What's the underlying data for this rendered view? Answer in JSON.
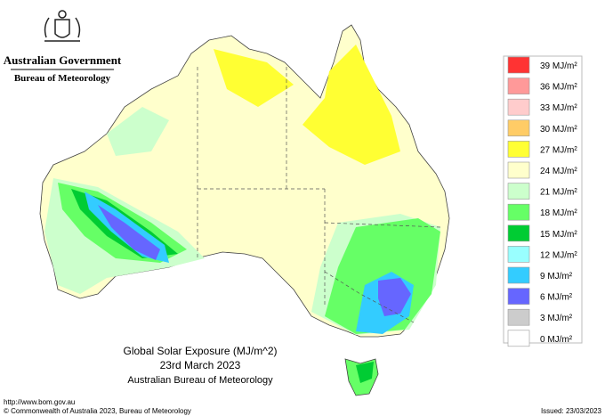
{
  "header": {
    "government": "Australian Government",
    "agency": "Bureau of Meteorology"
  },
  "map": {
    "title": "Global Solar Exposure (MJ/m^2)",
    "date": "23rd March 2023",
    "source": "Australian Bureau of Meteorology"
  },
  "legend": [
    {
      "label": "39 MJ/m²",
      "color": "#ff3333"
    },
    {
      "label": "36 MJ/m²",
      "color": "#ff9999"
    },
    {
      "label": "33 MJ/m²",
      "color": "#ffcccc"
    },
    {
      "label": "30 MJ/m²",
      "color": "#ffcc66"
    },
    {
      "label": "27 MJ/m²",
      "color": "#ffff33"
    },
    {
      "label": "24 MJ/m²",
      "color": "#ffffcc"
    },
    {
      "label": "21 MJ/m²",
      "color": "#ccffcc"
    },
    {
      "label": "18 MJ/m²",
      "color": "#66ff66"
    },
    {
      "label": "15 MJ/m²",
      "color": "#00cc33"
    },
    {
      "label": "12 MJ/m²",
      "color": "#99ffff"
    },
    {
      "label": "9 MJ/m²",
      "color": "#33ccff"
    },
    {
      "label": "6 MJ/m²",
      "color": "#6666ff"
    },
    {
      "label": "3 MJ/m²",
      "color": "#cccccc"
    },
    {
      "label": "0 MJ/m²",
      "color": "#ffffff"
    }
  ],
  "footer": {
    "url": "http://www.bom.gov.au",
    "copyright": "© Commonwealth of Australia 2023, Bureau of Meteorology",
    "issued": "Issued: 23/03/2023"
  }
}
